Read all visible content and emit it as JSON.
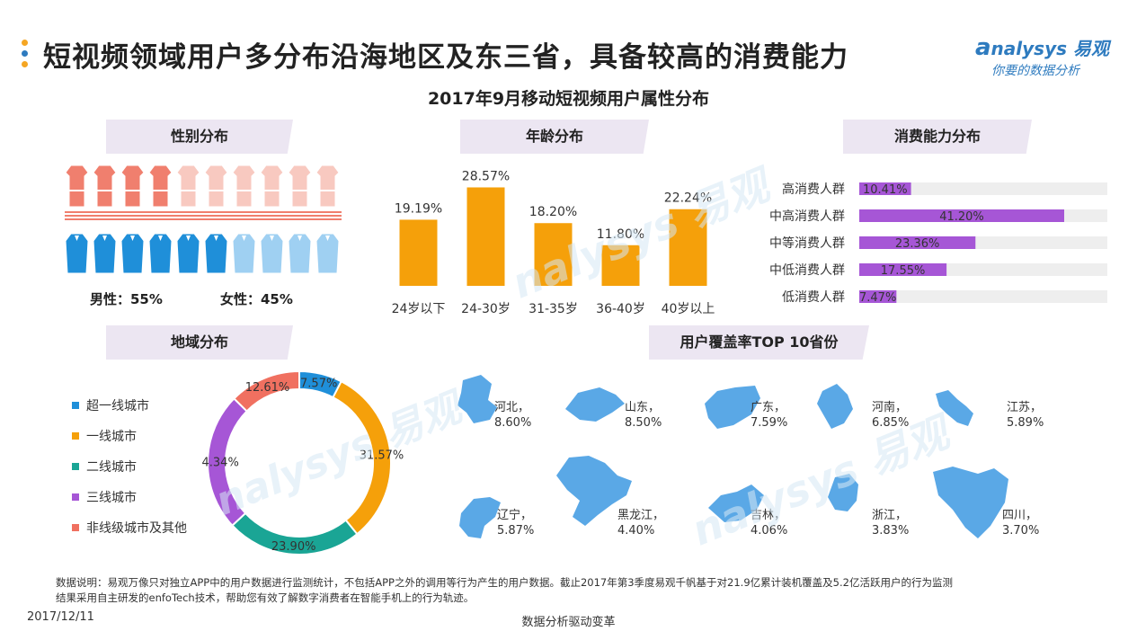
{
  "header": {
    "title": "短视频领域用户多分布沿海地区及东三省，具备较高的消费能力",
    "subtitle": "2017年9月移动短视频用户属性分布",
    "logo_text": "nalysys 易观",
    "logo_tagline": "你要的数据分析",
    "dot_colors": [
      "#f5a623",
      "#2e7bbf",
      "#f5a623"
    ]
  },
  "sections": {
    "gender": "性别分布",
    "age": "年龄分布",
    "consumption": "消费能力分布",
    "region": "地域分布",
    "top10": "用户覆盖率TOP 10省份"
  },
  "gender": {
    "male_label": "男性：55%",
    "female_label": "女性：45%",
    "female_share": 0.45,
    "male_share": 0.55,
    "female_color": "#f07f6e",
    "male_color": "#1f8fd9"
  },
  "chart_data": [
    {
      "type": "bar",
      "categories": [
        "24岁以下",
        "24-30岁",
        "31-35岁",
        "36-40岁",
        "40岁以上"
      ],
      "values": [
        19.19,
        28.57,
        18.2,
        11.8,
        22.24
      ],
      "labels": [
        "19.19%",
        "28.57%",
        "18.20%",
        "11.80%",
        "22.24%"
      ],
      "color": "#f5a00a",
      "ylim": [
        0,
        30
      ]
    },
    {
      "type": "bar",
      "orientation": "horizontal",
      "categories": [
        "高消费人群",
        "中高消费人群",
        "中等消费人群",
        "中低消费人群",
        "低消费人群"
      ],
      "values": [
        10.41,
        41.2,
        23.36,
        17.55,
        7.47
      ],
      "labels": [
        "10.41%",
        "41.20%",
        "23.36%",
        "17.55%",
        "7.47%"
      ],
      "color": "#a656d6",
      "track_color": "#eeeeee",
      "xlim": [
        0,
        100
      ]
    },
    {
      "type": "pie",
      "donut": true,
      "categories": [
        "超一线城市",
        "一线城市",
        "二线城市",
        "三线城市",
        "非线级城市及其他"
      ],
      "values": [
        7.57,
        31.57,
        23.9,
        24.34,
        12.61
      ],
      "labels": [
        "7.57%",
        "31.57%",
        "23.90%",
        "24.34%",
        "12.61%"
      ],
      "colors": [
        "#1f8fd9",
        "#f5a00a",
        "#1aa595",
        "#a656d6",
        "#f07060"
      ],
      "legend": "left"
    },
    {
      "type": "table",
      "rows": [
        {
          "province": "河北，",
          "value": "8.60%"
        },
        {
          "province": "山东，",
          "value": "8.50%"
        },
        {
          "province": "广东，",
          "value": "7.59%"
        },
        {
          "province": "河南，",
          "value": "6.85%"
        },
        {
          "province": "江苏，",
          "value": "5.89%"
        },
        {
          "province": "辽宁，",
          "value": "5.87%"
        },
        {
          "province": "黑龙江，",
          "value": "4.40%"
        },
        {
          "province": "吉林，",
          "value": "4.06%"
        },
        {
          "province": "浙江，",
          "value": "3.83%"
        },
        {
          "province": "四川，",
          "value": "3.70%"
        }
      ],
      "map_color": "#5aa8e6"
    }
  ],
  "notes": {
    "line1": "数据说明：易观万像只对独立APP中的用户数据进行监测统计，不包括APP之外的调用等行为产生的用户数据。截止2017年第3季度易观千帆基于对21.9亿累计装机覆盖及5.2亿活跃用户的行为监测",
    "line2": "结果采用自主研发的enfoTech技术，帮助您有效了解数字消费者在智能手机上的行为轨迹。"
  },
  "footer": {
    "date": "2017/12/11",
    "center": "数据分析驱动变革"
  }
}
